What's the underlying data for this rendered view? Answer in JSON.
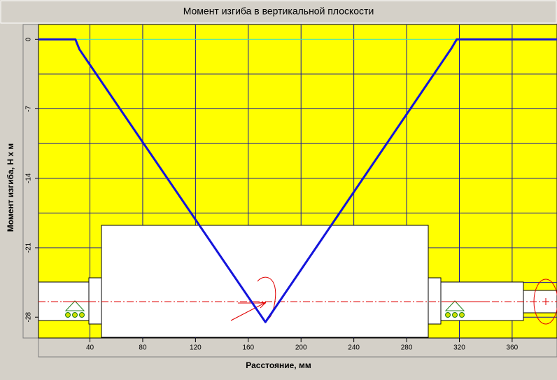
{
  "chart_data": {
    "type": "line",
    "title": "Момент изгиба в вертикальной плоскости",
    "x_label": "Расстояние, мм",
    "y_label": "Момент изгиба, Н х м",
    "series": [
      {
        "name": "Момент изгиба",
        "color": "#1414dc",
        "x": [
          1,
          29,
          32,
          173,
          314,
          318,
          394
        ],
        "values": [
          0,
          0,
          -1,
          -28.5,
          -0.9,
          0,
          0
        ]
      }
    ],
    "xlim": [
      1,
      394
    ],
    "xticks": [
      40,
      80,
      120,
      160,
      200,
      240,
      280,
      320,
      360
    ],
    "ylim": [
      -30.1,
      1.5
    ],
    "yticks": [
      0,
      -7,
      -14,
      -21,
      -28
    ],
    "yminor": [
      -3.5,
      -10.5,
      -17.5,
      -24.5
    ],
    "grid": true,
    "grid_color": "#1414a0",
    "zero_line_color": "#30e0d0",
    "plot_background": "#ffff00"
  }
}
